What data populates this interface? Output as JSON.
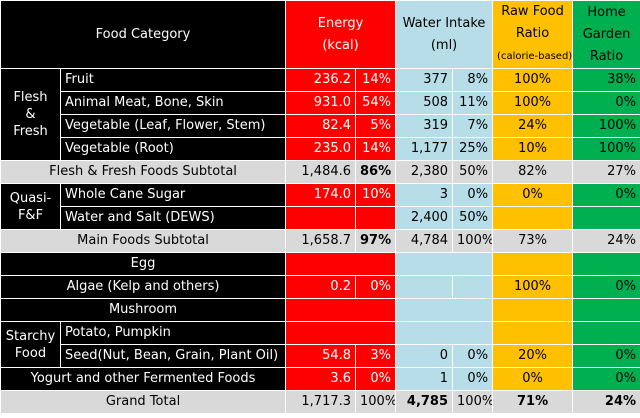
{
  "header": {
    "category": "Food Category",
    "energy_line1": "Energy",
    "energy_line2": "(kcal)",
    "water_line1": "Water Intake",
    "water_line2": "(ml)",
    "raw_line1": "Raw Food",
    "raw_line2": "Ratio",
    "raw_line3": "(calorie-based)",
    "garden_line1": "Home",
    "garden_line2": "Garden",
    "garden_line3": "Ratio"
  },
  "groups": {
    "flesh_1": "Flesh",
    "flesh_2": "&",
    "flesh_3": "Fresh",
    "quasi_1": "Quasi-",
    "quasi_2": "F&F",
    "starchy_1": "Starchy",
    "starchy_2": "Food"
  },
  "rows": {
    "fruit": {
      "name": "Fruit",
      "energy": "236.2",
      "energy_pct": "14%",
      "water": "377",
      "water_pct": "8%",
      "raw": "100%",
      "garden": "38%"
    },
    "meat": {
      "name": "Animal Meat, Bone, Skin",
      "energy": "931.0",
      "energy_pct": "54%",
      "water": "508",
      "water_pct": "11%",
      "raw": "100%",
      "garden": "0%"
    },
    "veg_leaf": {
      "name": "Vegetable (Leaf, Flower, Stem)",
      "energy": "82.4",
      "energy_pct": "5%",
      "water": "319",
      "water_pct": "7%",
      "raw": "24%",
      "garden": "100%"
    },
    "veg_root": {
      "name": "Vegetable (Root)",
      "energy": "235.0",
      "energy_pct": "14%",
      "water": "1,177",
      "water_pct": "25%",
      "raw": "10%",
      "garden": "100%"
    },
    "ff_sub": {
      "name": "Flesh & Fresh Foods Subtotal",
      "energy": "1,484.6",
      "energy_pct": "86%",
      "water": "2,380",
      "water_pct": "50%",
      "raw": "82%",
      "garden": "27%"
    },
    "sugar": {
      "name": "Whole Cane Sugar",
      "energy": "174.0",
      "energy_pct": "10%",
      "water": "3",
      "water_pct": "0%",
      "raw": "0%",
      "garden": "0%"
    },
    "salt": {
      "name": "Water and Salt (DEWS)",
      "energy": "",
      "energy_pct": "",
      "water": "2,400",
      "water_pct": "50%",
      "raw": "",
      "garden": ""
    },
    "main_sub": {
      "name": "Main Foods Subtotal",
      "energy": "1,658.7",
      "energy_pct": "97%",
      "water": "4,784",
      "water_pct": "100%",
      "raw": "73%",
      "garden": "24%"
    },
    "egg": {
      "name": "Egg"
    },
    "algae": {
      "name": "Algae (Kelp and others)",
      "energy": "0.2",
      "energy_pct": "0%",
      "water": "",
      "water_pct": "",
      "raw": "100%",
      "garden": "0%"
    },
    "mushroom": {
      "name": "Mushroom"
    },
    "potato": {
      "name": "Potato, Pumpkin"
    },
    "seed": {
      "name": "Seed(Nut, Bean, Grain, Plant Oil)",
      "energy": "54.8",
      "energy_pct": "3%",
      "water": "0",
      "water_pct": "0%",
      "raw": "20%",
      "garden": "0%"
    },
    "yogurt": {
      "name": "Yogurt and other Fermented Foods",
      "energy": "3.6",
      "energy_pct": "0%",
      "water": "1",
      "water_pct": "0%",
      "raw": "0%",
      "garden": "0%"
    },
    "grand": {
      "name": "Grand Total",
      "energy": "1,717.3",
      "energy_pct": "100%",
      "water": "4,785",
      "water_pct": "100%",
      "raw": "71%",
      "garden": "24%"
    }
  },
  "colors": {
    "category": "#000000",
    "energy": "#ff0000",
    "water": "#b7dee8",
    "raw": "#ffc000",
    "garden": "#00b050",
    "subtotal": "#d9d9d9"
  }
}
